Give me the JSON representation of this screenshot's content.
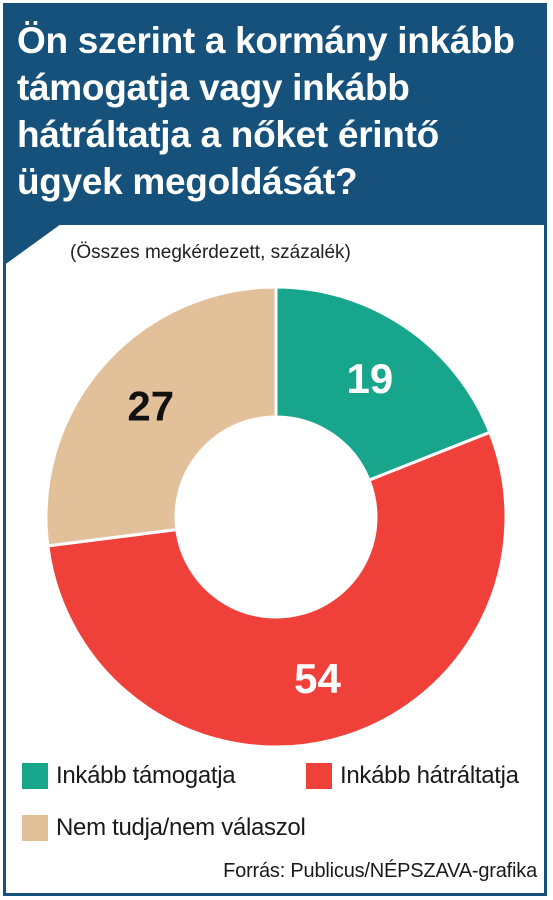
{
  "header": {
    "title": "Ön szerint a kormány inkább támogatja vagy inkább hátráltatja a nőket érintő ügyek megoldását?",
    "subtitle": "(Összes megkérdezett, százalék)",
    "bg_color": "#15517a"
  },
  "chart_data": {
    "type": "pie",
    "donut": true,
    "title": "Ön szerint a kormány inkább támogatja vagy inkább hátráltatja a nőket érintő ügyek megoldását?",
    "subtitle": "(Összes megkérdezett, százalék)",
    "categories": [
      "Inkább támogatja",
      "Inkább hátráltatja",
      "Nem tudja/nem válaszol"
    ],
    "values": [
      19,
      54,
      27
    ],
    "colors": [
      "#17a58b",
      "#ef403a",
      "#e1c09a"
    ],
    "data_labels": [
      "19",
      "54",
      "27"
    ],
    "label_colors": [
      "#ffffff",
      "#ffffff",
      "#111111"
    ],
    "legend_position": "bottom"
  },
  "legend": {
    "items": [
      {
        "label": "Inkább támogatja",
        "color": "#17a58b"
      },
      {
        "label": "Inkább hátráltatja",
        "color": "#ef403a"
      },
      {
        "label": "Nem tudja/nem válaszol",
        "color": "#e1c09a"
      }
    ]
  },
  "footer": {
    "source": "Forrás: Publicus/NÉPSZAVA-grafika"
  }
}
